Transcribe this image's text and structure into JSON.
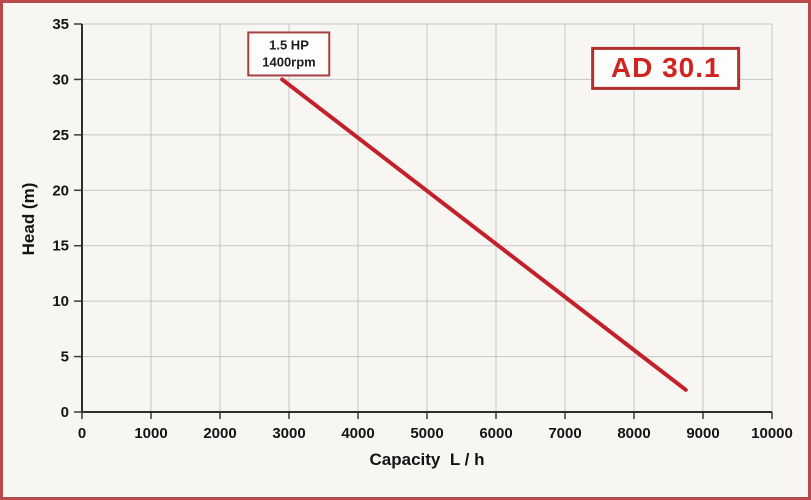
{
  "page": {
    "background": "#f8f6f3",
    "frame_color": "#b94a4c"
  },
  "chart_data": {
    "type": "line",
    "title": "",
    "xlabel": "Capacity  L / h",
    "ylabel": "Head (m)",
    "xlim": [
      0,
      10000
    ],
    "ylim": [
      0,
      35
    ],
    "x_ticks": [
      0,
      1000,
      2000,
      3000,
      4000,
      5000,
      6000,
      7000,
      8000,
      9000,
      10000
    ],
    "y_ticks": [
      0,
      5,
      10,
      15,
      20,
      25,
      30,
      35
    ],
    "grid": true,
    "legend_position": "none",
    "colors": {
      "curve": "#c4202a",
      "grid": "#c5c5c5",
      "axis": "#2f2f2f",
      "model_text": "#cf241f",
      "model_border": "#b2312d",
      "spec_border": "#a84043"
    },
    "series": [
      {
        "name": "1.5 HP 1400rpm",
        "color": "#c4202a",
        "points": [
          [
            2900,
            30
          ],
          [
            8750,
            2
          ]
        ]
      }
    ],
    "annotations": [
      {
        "id": "pump-spec",
        "lines": [
          "1.5 HP",
          "1400rpm"
        ],
        "x": 3000,
        "y": 32.3,
        "style": "spec"
      },
      {
        "id": "model",
        "lines": [
          "AD 30.1"
        ],
        "x": 8460,
        "y": 31.0,
        "style": "model"
      }
    ]
  }
}
